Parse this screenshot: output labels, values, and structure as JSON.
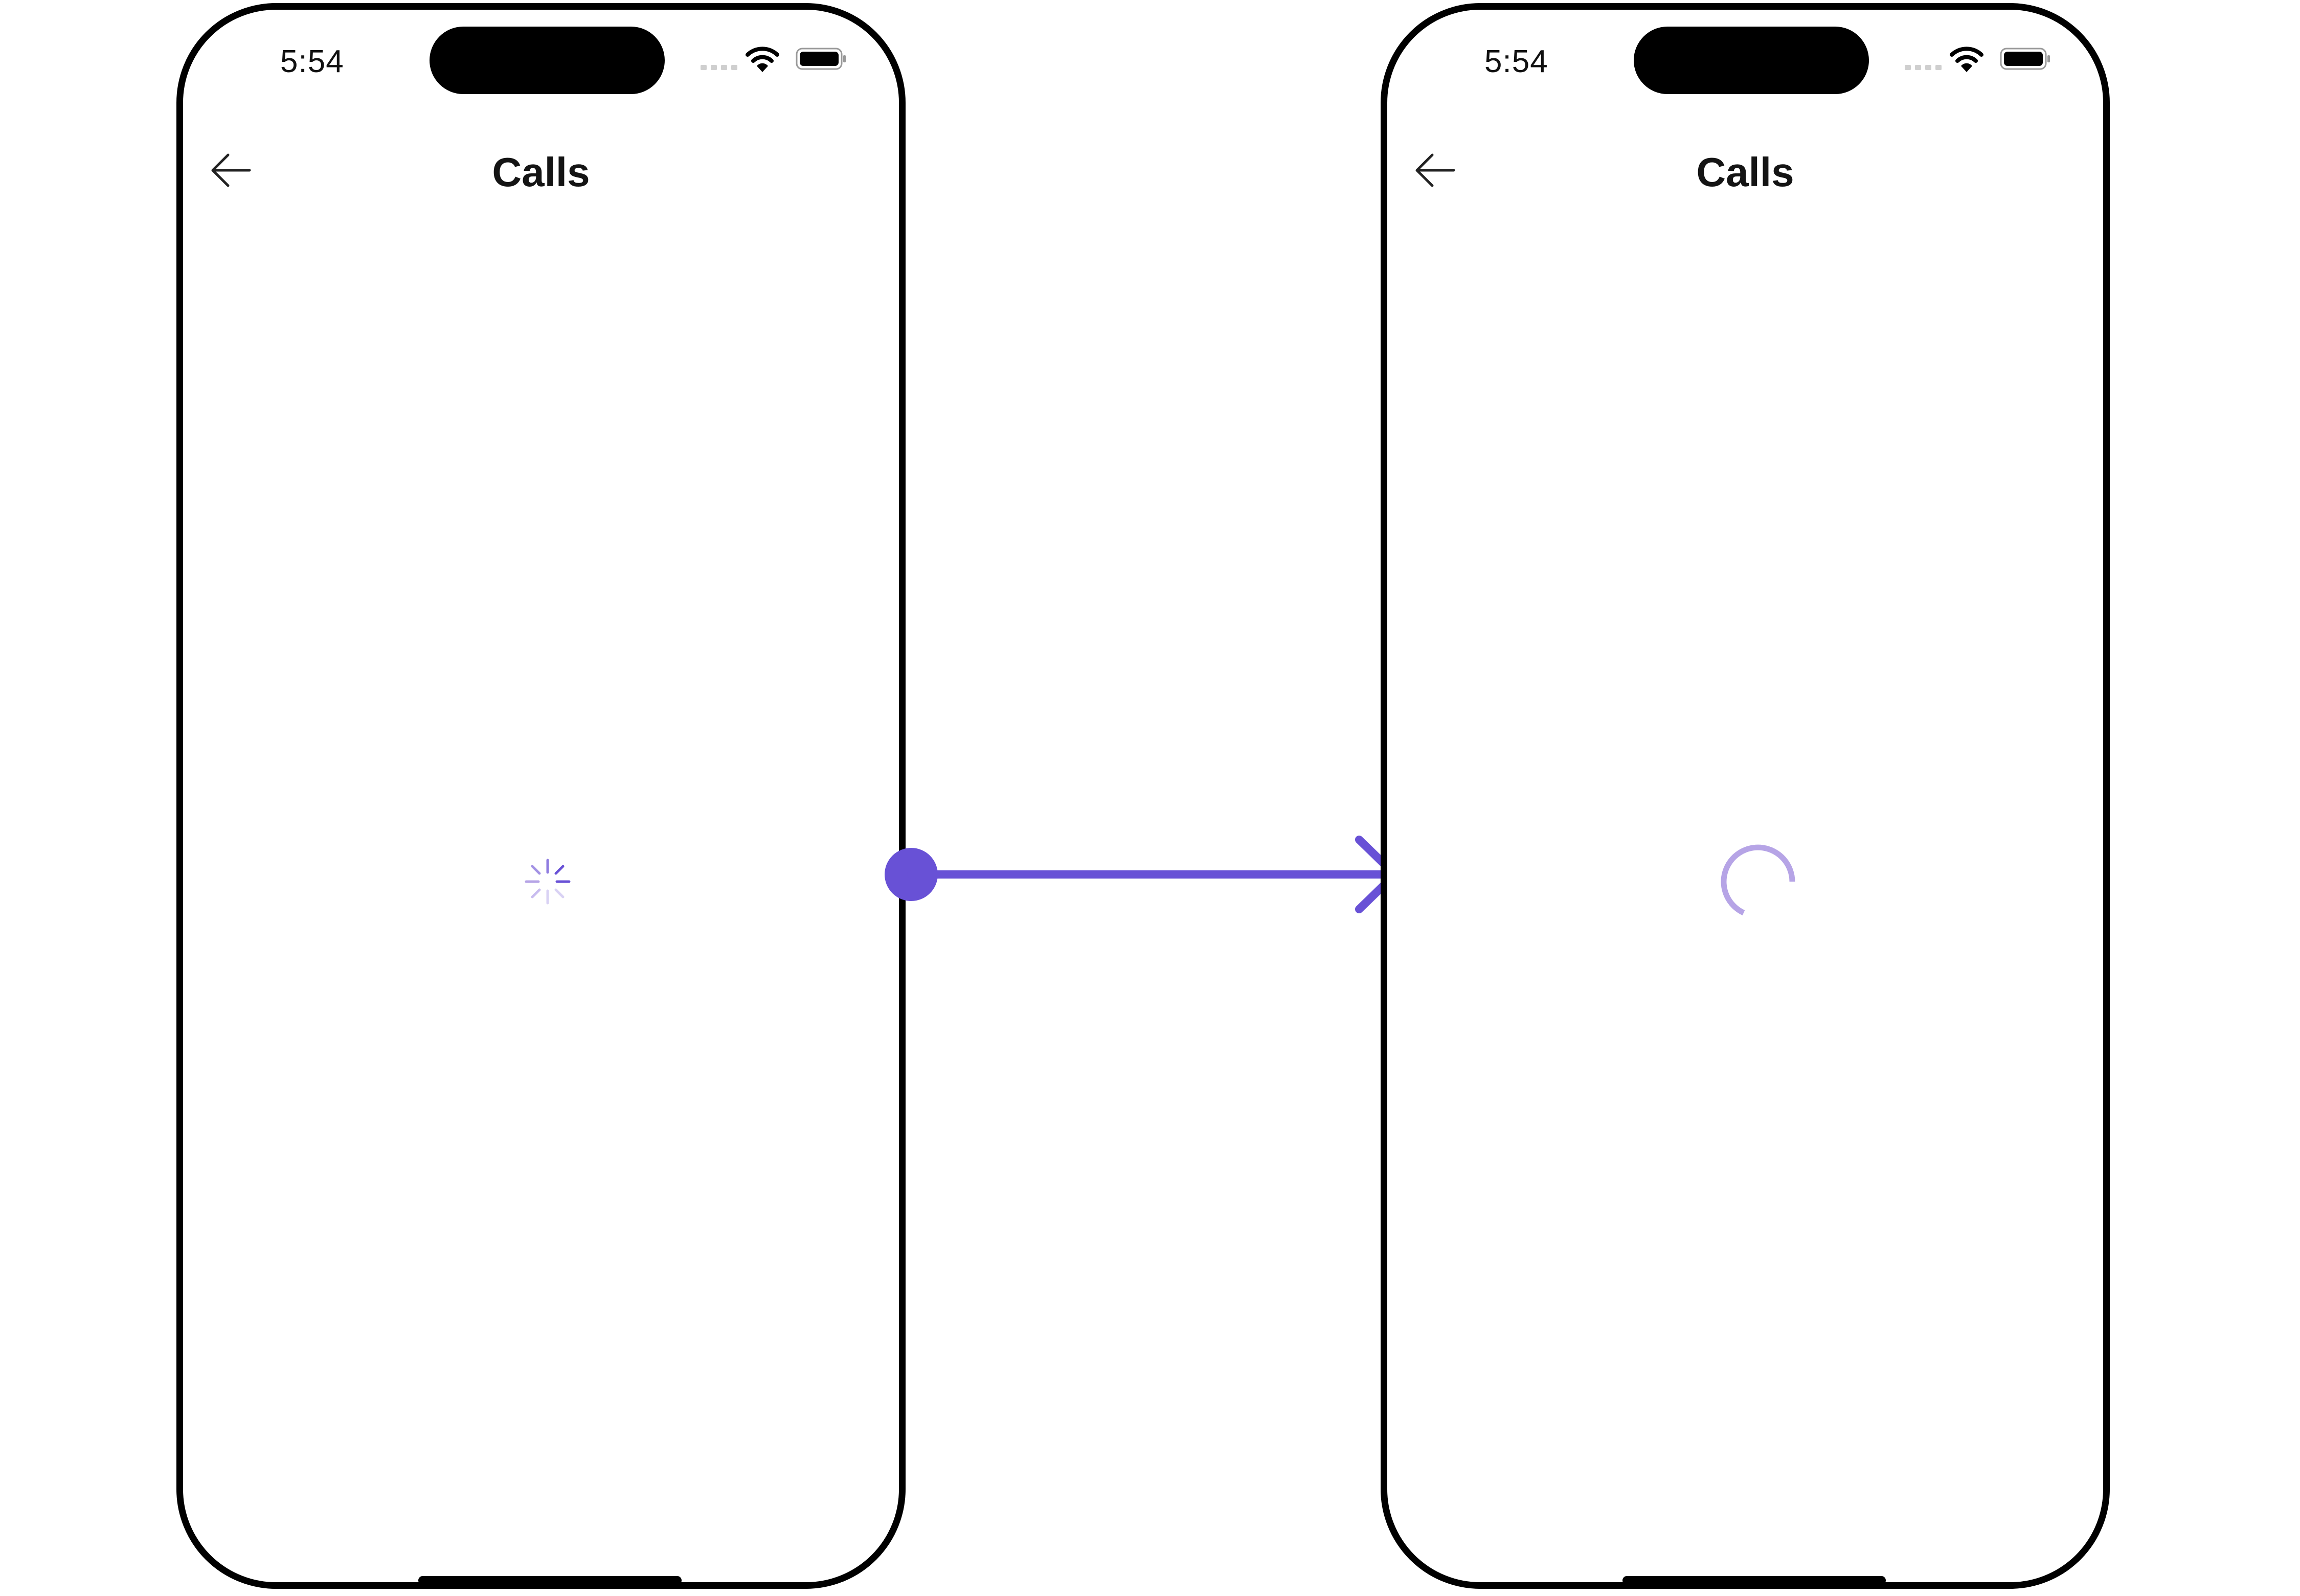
{
  "colors": {
    "accent": "#6851D6",
    "spinner_light": "#B6A4E6",
    "frame": "#000000",
    "text": "#141414"
  },
  "screens": [
    {
      "status_time": "5:54",
      "title": "Calls",
      "back_icon": "arrow-left-icon",
      "loading_indicator": "activity-spinner-icon"
    },
    {
      "status_time": "5:54",
      "title": "Calls",
      "back_icon": "arrow-left-icon",
      "loading_indicator": "circular-progress-icon"
    }
  ],
  "transition_icon": "flow-arrow-icon"
}
